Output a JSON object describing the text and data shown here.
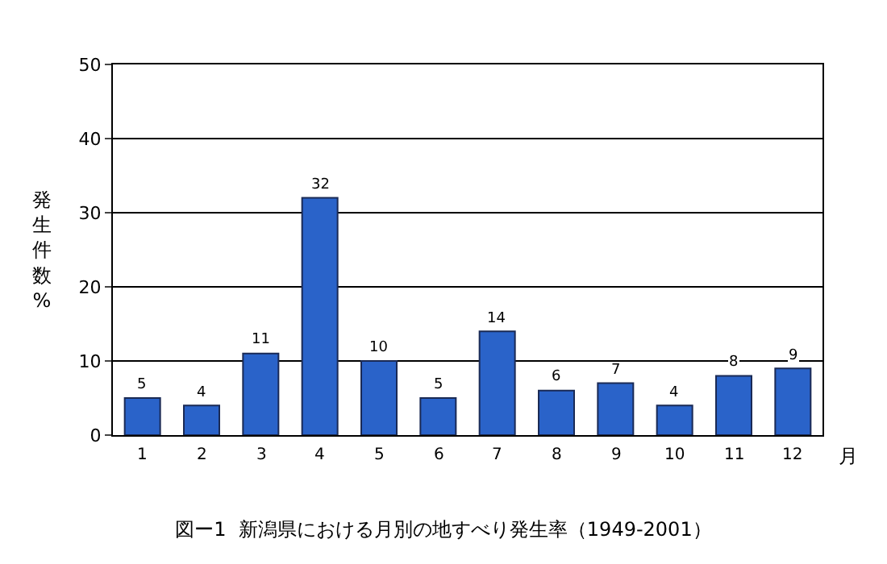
{
  "chart_data": {
    "type": "bar",
    "title": "図ー1  新潟県における月別の地すべり発生率（1949-2001）",
    "xlabel": "月",
    "ylabel": "発生件数 %",
    "categories": [
      "1",
      "2",
      "3",
      "4",
      "5",
      "6",
      "7",
      "8",
      "9",
      "10",
      "11",
      "12"
    ],
    "values": [
      5,
      4,
      11,
      32,
      10,
      5,
      14,
      6,
      7,
      4,
      8,
      9
    ],
    "color": "#2a63c9",
    "ylim": [
      0,
      50
    ],
    "yticks": [
      0,
      10,
      20,
      30,
      40,
      50
    ],
    "grid": "y",
    "data_labels": true,
    "legend": false
  }
}
